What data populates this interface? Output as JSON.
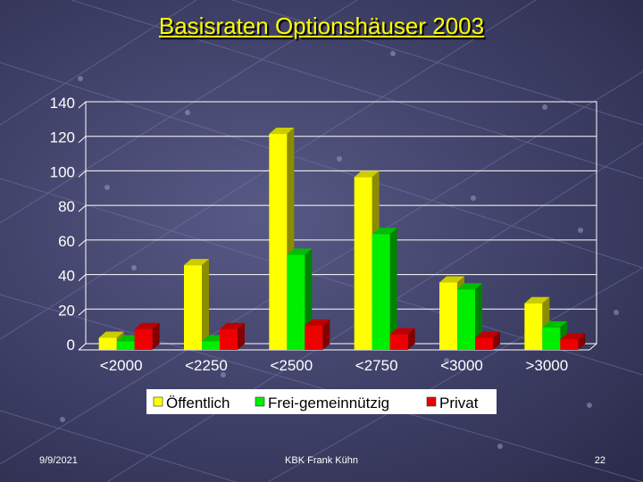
{
  "slide": {
    "title": "Basisraten Optionshäuser 2003",
    "footer_date": "9/9/2021",
    "footer_author": "KBK Frank Kühn",
    "page_number": "22"
  },
  "colors": {
    "Öffentlich": "#ffff00",
    "Frei-gemeinnützig": "#00ee00",
    "Privat": "#ee0000"
  },
  "chart_data": {
    "type": "bar",
    "title": "",
    "categories": [
      "<2000",
      "<2250",
      "<2500",
      "<2750",
      "<3000",
      ">3000"
    ],
    "series": [
      {
        "name": "Öffentlich",
        "values": [
          7,
          49,
          125,
          100,
          39,
          27
        ]
      },
      {
        "name": "Frei-gemeinnützig",
        "values": [
          5,
          5,
          55,
          67,
          35,
          13
        ]
      },
      {
        "name": "Privat",
        "values": [
          12,
          12,
          14,
          9,
          7,
          6
        ]
      }
    ],
    "yticks": [
      0,
      20,
      40,
      60,
      80,
      100,
      120,
      140
    ],
    "ylim": [
      0,
      140
    ],
    "grid": true,
    "legend_position": "bottom"
  }
}
